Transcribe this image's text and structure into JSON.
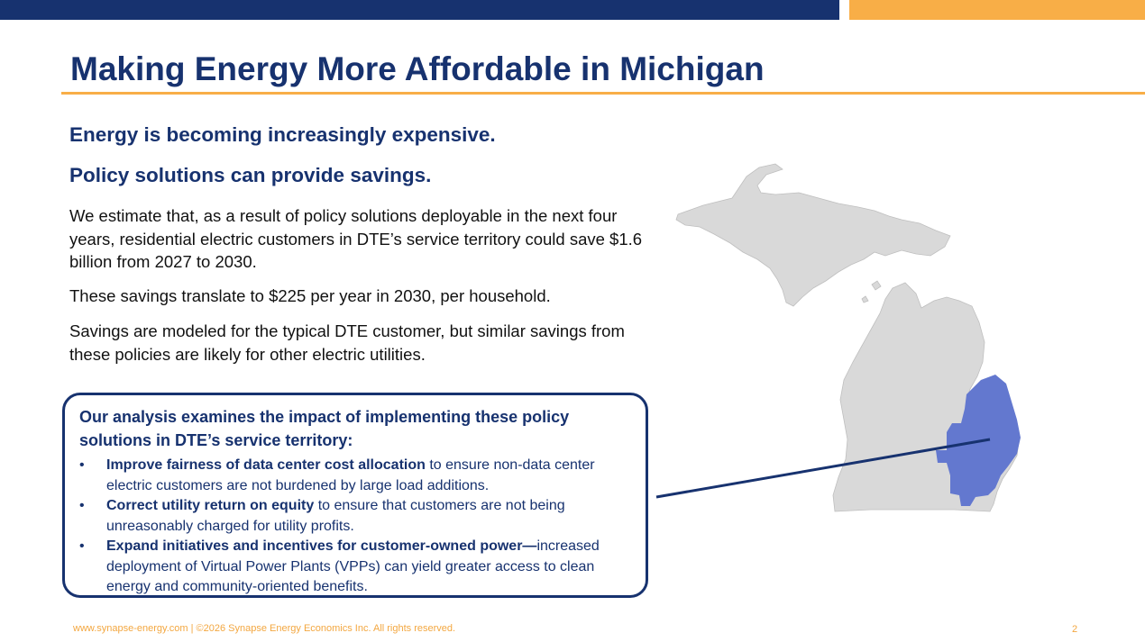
{
  "slide": {
    "title": "Making Energy More Affordable in Michigan",
    "heading_1": "Energy is becoming increasingly expensive.",
    "heading_2": "Policy solutions can provide savings.",
    "paragraph_1": "We estimate that, as a result of policy solutions deployable in the next four years, residential electric customers in DTE’s service territory could save $1.6 billion from 2027 to 2030.",
    "paragraph_2": "These savings translate to $225 per year in 2030, per household.",
    "paragraph_3": "Savings are modeled for the typical DTE customer, but similar savings from these policies are likely for other electric utilities."
  },
  "callout": {
    "heading": "Our analysis examines the impact of implementing these policy solutions in DTE’s service territory:",
    "bullet_glyph": "•",
    "items": [
      {
        "bold": "Improve fairness of data center cost allocation",
        "rest": " to ensure non-data center electric customers are not burdened by large load additions."
      },
      {
        "bold": "Correct utility return on equity",
        "rest": " to ensure that customers are not being unreasonably charged for utility profits."
      },
      {
        "bold": "Expand initiatives and incentives for customer-owned power—",
        "rest": "increased deployment of Virtual Power Plants (VPPs) can yield greater access to clean energy and community-oriented benefits."
      }
    ]
  },
  "map": {
    "state_color": "#d9d9d9",
    "territory_color": "#6378cf",
    "connector_color": "#17326f"
  },
  "footer": {
    "text": "www.synapse-energy.com  |  ©2026 Synapse Energy Economics Inc. All rights reserved.",
    "page_number": "2"
  },
  "colors": {
    "navy": "#17326f",
    "gold": "#f8ae47"
  }
}
